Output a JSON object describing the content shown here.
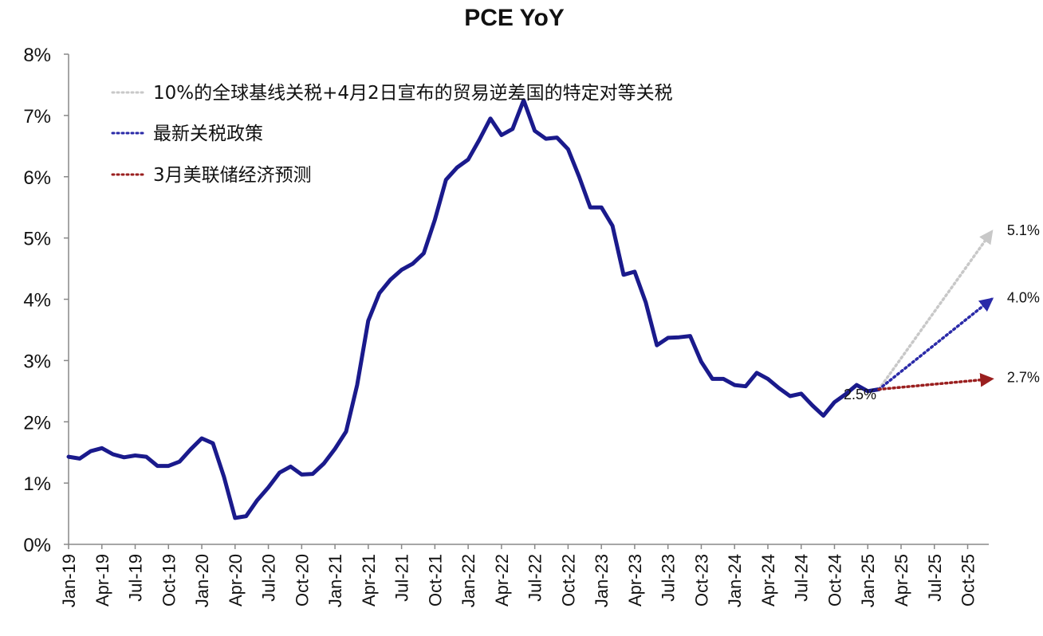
{
  "chart_data": {
    "type": "line",
    "title": "PCE YoY",
    "xlabel": "",
    "ylabel": "",
    "ylim": [
      0,
      8
    ],
    "y_ticks": [
      "0%",
      "1%",
      "2%",
      "3%",
      "4%",
      "5%",
      "6%",
      "7%",
      "8%"
    ],
    "x_ticks": [
      "Jan-19",
      "Apr-19",
      "Jul-19",
      "Oct-19",
      "Jan-20",
      "Apr-20",
      "Jul-20",
      "Oct-20",
      "Jan-21",
      "Apr-21",
      "Jul-21",
      "Oct-21",
      "Jan-22",
      "Apr-22",
      "Jul-22",
      "Oct-22",
      "Jan-23",
      "Apr-23",
      "Jul-23",
      "Oct-23",
      "Jan-24",
      "Apr-24",
      "Jul-24",
      "Oct-24",
      "Jan-25",
      "Apr-25",
      "Jul-25",
      "Oct-25"
    ],
    "grid": false,
    "legend_position": "top-left",
    "series": [
      {
        "color": "#1a1a8c",
        "x": [
          "Jan-19",
          "Feb-19",
          "Mar-19",
          "Apr-19",
          "May-19",
          "Jun-19",
          "Jul-19",
          "Aug-19",
          "Sep-19",
          "Oct-19",
          "Nov-19",
          "Dec-19",
          "Jan-20",
          "Feb-20",
          "Mar-20",
          "Apr-20",
          "May-20",
          "Jun-20",
          "Jul-20",
          "Aug-20",
          "Sep-20",
          "Oct-20",
          "Nov-20",
          "Dec-20",
          "Jan-21",
          "Feb-21",
          "Mar-21",
          "Apr-21",
          "May-21",
          "Jun-21",
          "Jul-21",
          "Aug-21",
          "Sep-21",
          "Oct-21",
          "Nov-21",
          "Dec-21",
          "Jan-22",
          "Feb-22",
          "Mar-22",
          "Apr-22",
          "May-22",
          "Jun-22",
          "Jul-22",
          "Aug-22",
          "Sep-22",
          "Oct-22",
          "Nov-22",
          "Dec-22",
          "Jan-23",
          "Feb-23",
          "Mar-23",
          "Apr-23",
          "May-23",
          "Jun-23",
          "Jul-23",
          "Aug-23",
          "Sep-23",
          "Oct-23",
          "Nov-23",
          "Dec-23",
          "Jan-24",
          "Feb-24",
          "Mar-24",
          "Apr-24",
          "May-24",
          "Jun-24",
          "Jul-24",
          "Aug-24",
          "Sep-24",
          "Oct-24",
          "Nov-24",
          "Dec-24",
          "Jan-25",
          "Feb-25"
        ],
        "values": [
          1.43,
          1.4,
          1.52,
          1.57,
          1.47,
          1.42,
          1.45,
          1.43,
          1.28,
          1.28,
          1.35,
          1.55,
          1.73,
          1.65,
          1.1,
          0.43,
          0.46,
          0.72,
          0.93,
          1.17,
          1.27,
          1.14,
          1.15,
          1.32,
          1.56,
          1.84,
          2.6,
          3.65,
          4.1,
          4.32,
          4.48,
          4.58,
          4.75,
          5.3,
          5.95,
          6.15,
          6.28,
          6.6,
          6.95,
          6.68,
          6.78,
          7.25,
          6.75,
          6.62,
          6.64,
          6.45,
          6.0,
          5.5,
          5.5,
          5.2,
          4.4,
          4.45,
          3.95,
          3.25,
          3.37,
          3.38,
          3.4,
          2.98,
          2.7,
          2.7,
          2.6,
          2.58,
          2.8,
          2.7,
          2.55,
          2.42,
          2.46,
          2.27,
          2.1,
          2.32,
          2.45,
          2.6,
          2.5,
          2.53
        ]
      }
    ],
    "projections": [
      {
        "name": "10%的全球基线关税+4月2日宣布的贸易逆差国的特定对等关税",
        "color": "#c8c8c8",
        "from_x": "Feb-25",
        "from_value": 2.53,
        "to_x": "Dec-25",
        "to_value": 5.1,
        "label": "5.1%"
      },
      {
        "name": "最新关税政策",
        "color": "#2a2aa8",
        "from_x": "Feb-25",
        "from_value": 2.53,
        "to_x": "Dec-25",
        "to_value": 4.0,
        "label": "4.0%"
      },
      {
        "name": "3月美联储经济预测",
        "color": "#9a1f1f",
        "from_x": "Feb-25",
        "from_value": 2.53,
        "to_x": "Dec-25",
        "to_value": 2.7,
        "label": "2.7%"
      }
    ],
    "annotations": [
      {
        "text": "2.5%",
        "x": "Oct-24",
        "value": 2.5
      }
    ]
  }
}
